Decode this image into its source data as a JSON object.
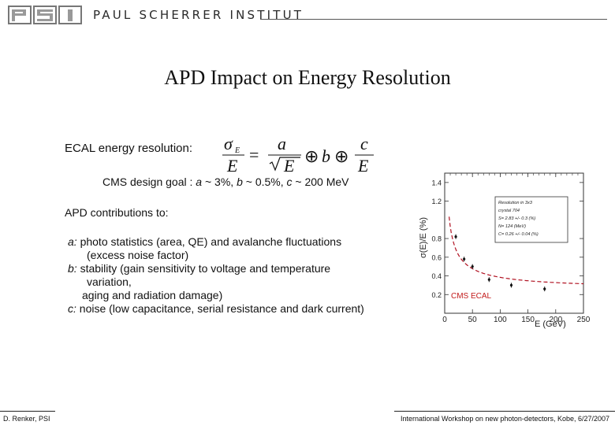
{
  "header": {
    "logo_text": "PSI",
    "institute": "PAUL SCHERRER INSTITUT"
  },
  "slide": {
    "title": "APD Impact on Energy Resolution",
    "ecal_label": "ECAL energy resolution:",
    "goal_prefix": "CMS design goal : ",
    "goal_a": "a",
    "goal_a_rest": " ~ 3%, ",
    "goal_b": "b",
    "goal_b_rest": " ~ 0.5%, ",
    "goal_c": "c",
    "goal_c_rest": " ~ 200 MeV",
    "apd_label": "APD contributions to:",
    "contrib": {
      "a_key": "a:",
      "a_line1": " photo statistics (area, QE) and avalanche fluctuations",
      "a_line2": "(excess noise factor)",
      "b_key": "b:",
      "b_line1": " stability (gain sensitivity to voltage and temperature",
      "b_line2": "variation,",
      "b_line3": "aging and radiation damage)",
      "c_key": "c:",
      "c_line1": " noise (low capacitance, serial resistance and dark current)"
    }
  },
  "formula": {
    "lhs_sigma": "σ",
    "lhs_sub": "E",
    "lhs_den": "E",
    "eq": "=",
    "a": "a",
    "sqrtE": "E",
    "oplus1": "⊕",
    "b": "b",
    "oplus2": "⊕",
    "c": "c",
    "c_den": "E"
  },
  "chart_data": {
    "type": "scatter",
    "ylabel": "σ(E)/E (%)",
    "xlabel": "E (GeV)",
    "x_ticks": [
      "0",
      "50",
      "100",
      "150",
      "200",
      "250"
    ],
    "y_ticks": [
      "0.2",
      "0.4",
      "0.6",
      "0.8",
      "1.2",
      "1.4"
    ],
    "xlim": [
      0,
      250
    ],
    "ylim": [
      0,
      1.5
    ],
    "points": [
      {
        "x": 20,
        "y": 0.82
      },
      {
        "x": 35,
        "y": 0.58
      },
      {
        "x": 50,
        "y": 0.5
      },
      {
        "x": 80,
        "y": 0.36
      },
      {
        "x": 120,
        "y": 0.3
      },
      {
        "x": 180,
        "y": 0.26
      }
    ],
    "fit": {
      "a": 2.83,
      "b": 0.26,
      "c": 0.124
    },
    "annotation": "CMS ECAL",
    "legend": {
      "line1": "Resolution in 3x3",
      "line2": "crystal 704",
      "line3": "S= 2.83 +/- 0.3 (%)",
      "line4": "N= 124 (MeV)",
      "line5": "C= 0.26 +/- 0.04 (%)"
    },
    "colors": {
      "fit": "#b01020",
      "annotation": "#c21a1a"
    }
  },
  "footer": {
    "author": "D. Renker, PSI",
    "event": "International Workshop on new photon-detectors, Kobe, 6/27/2007"
  }
}
